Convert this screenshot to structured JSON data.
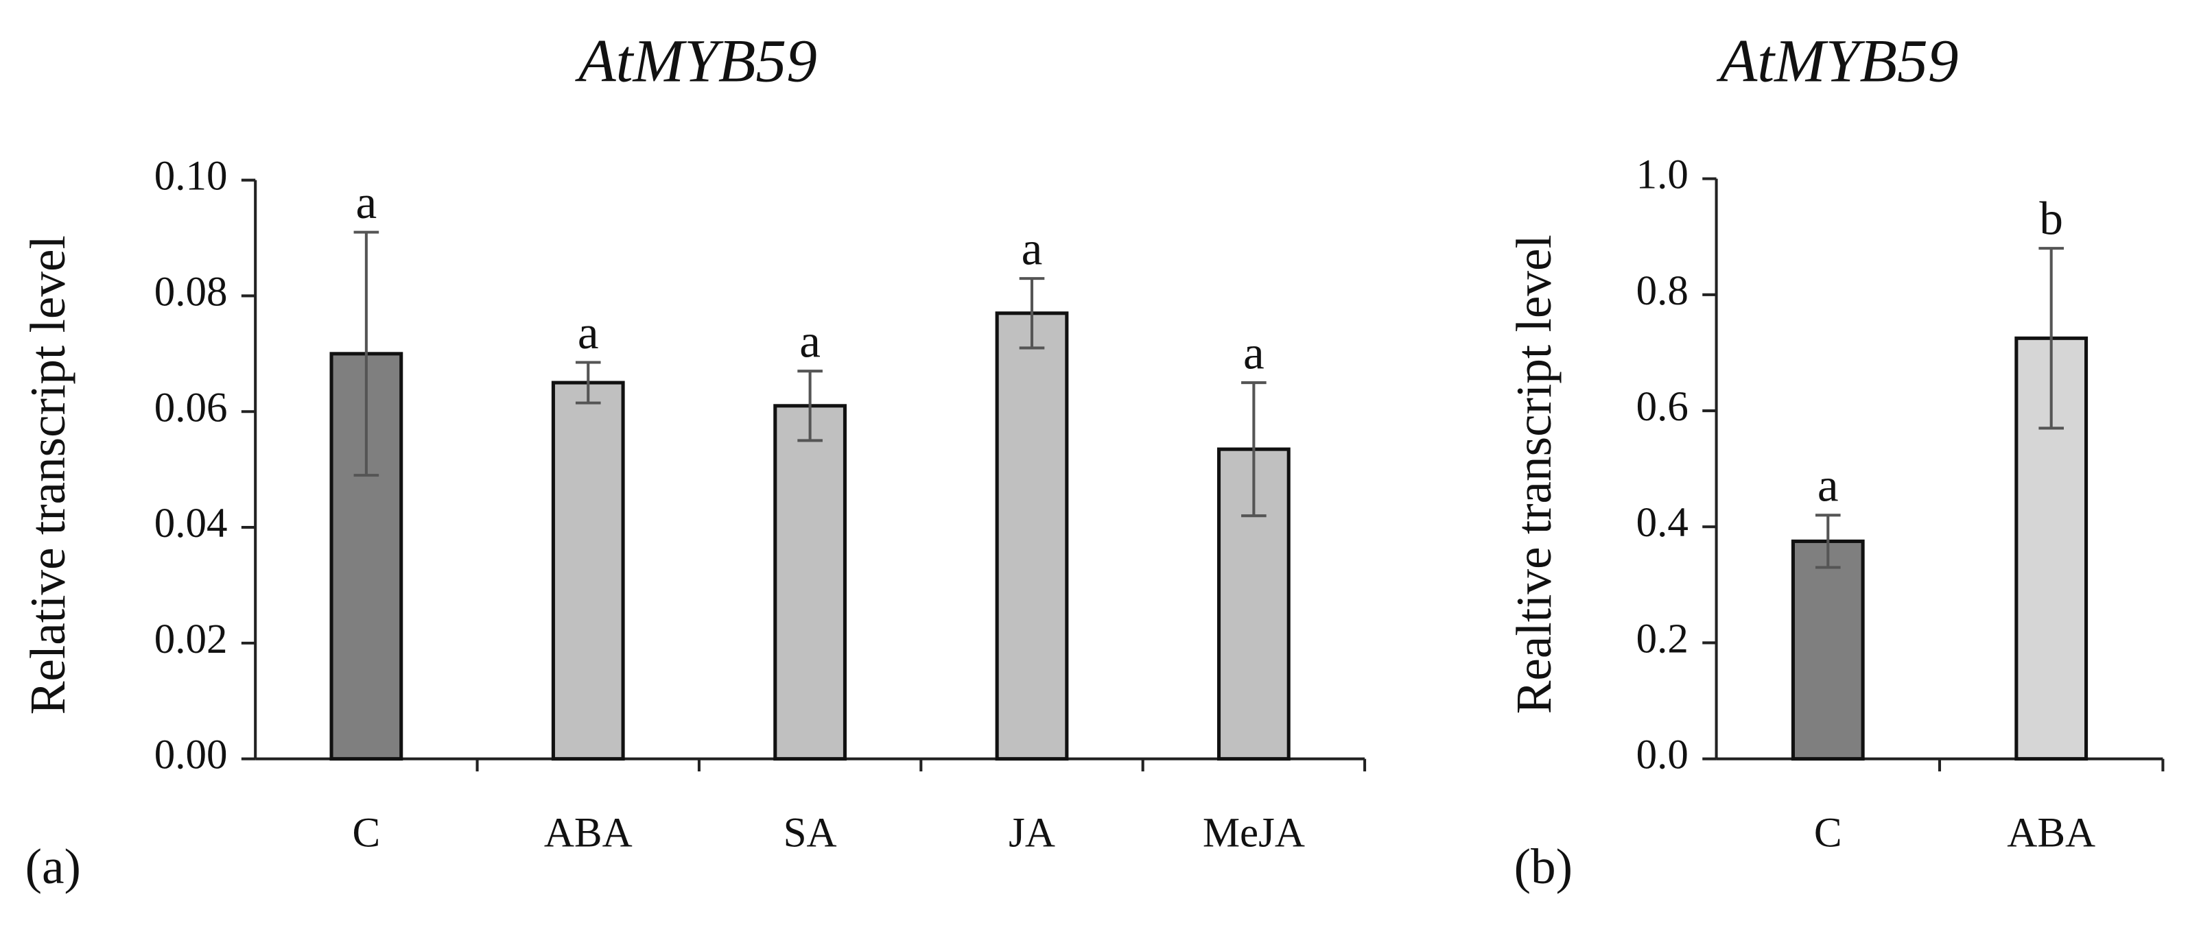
{
  "chart_data": [
    {
      "type": "bar",
      "title": "AtMYB59",
      "panel_label": "(a)",
      "y_label": "Relative transcript level",
      "categories": [
        "C",
        "ABA",
        "SA",
        "JA",
        "MeJA"
      ],
      "values": [
        0.07,
        0.065,
        0.061,
        0.077,
        0.0535
      ],
      "errors": [
        0.021,
        0.0035,
        0.006,
        0.006,
        0.0115
      ],
      "annotations": [
        "a",
        "a",
        "a",
        "a",
        "a"
      ],
      "colors": [
        "#7f7f7f",
        "#c0c0c0",
        "#c0c0c0",
        "#c0c0c0",
        "#c0c0c0"
      ],
      "ylim": [
        0,
        0.1
      ],
      "yticks": [
        {
          "value": 0,
          "label": "0.00"
        },
        {
          "value": 0.02,
          "label": "0.02"
        },
        {
          "value": 0.04,
          "label": "0.04"
        },
        {
          "value": 0.06,
          "label": "0.06"
        },
        {
          "value": 0.08,
          "label": "0.08"
        },
        {
          "value": 0.1,
          "label": "0.10"
        }
      ]
    },
    {
      "type": "bar",
      "title": "AtMYB59",
      "panel_label": "(b)",
      "y_label": "Realtive transcript level",
      "categories": [
        "C",
        "ABA"
      ],
      "values": [
        0.375,
        0.725
      ],
      "errors": [
        0.045,
        0.155
      ],
      "annotations": [
        "a",
        "b"
      ],
      "colors": [
        "#7f7f7f",
        "#d6d6d6"
      ],
      "ylim": [
        0,
        1
      ],
      "yticks": [
        {
          "value": 0,
          "label": "0.0"
        },
        {
          "value": 0.2,
          "label": "0.2"
        },
        {
          "value": 0.4,
          "label": "0.4"
        },
        {
          "value": 0.6,
          "label": "0.6"
        },
        {
          "value": 0.8,
          "label": "0.8"
        },
        {
          "value": 1,
          "label": "1.0"
        }
      ]
    }
  ]
}
